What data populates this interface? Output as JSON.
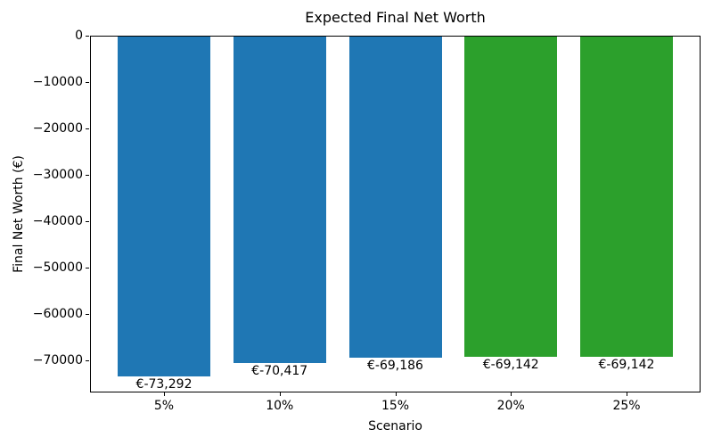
{
  "chart_data": {
    "type": "bar",
    "title": "Expected Final Net Worth",
    "xlabel": "Scenario",
    "ylabel": "Final Net Worth (€)",
    "categories": [
      "5%",
      "10%",
      "15%",
      "20%",
      "25%"
    ],
    "values": [
      -73292,
      -70417,
      -69186,
      -69142,
      -69142
    ],
    "bar_labels": [
      "€-73,292",
      "€-70,417",
      "€-69,186",
      "€-69,142",
      "€-69,142"
    ],
    "bar_colors": [
      "#1f77b4",
      "#1f77b4",
      "#1f77b4",
      "#2ca02c",
      "#2ca02c"
    ],
    "ylim": [
      -76957,
      0
    ],
    "yticks": {
      "values": [
        0,
        -10000,
        -20000,
        -30000,
        -40000,
        -50000,
        -60000,
        -70000
      ],
      "labels": [
        "0",
        "−10000",
        "−20000",
        "−30000",
        "−40000",
        "−50000",
        "−60000",
        "−70000"
      ]
    },
    "grid": false,
    "legend": null,
    "background_color": "#ffffff",
    "spine_color": "#000000"
  }
}
